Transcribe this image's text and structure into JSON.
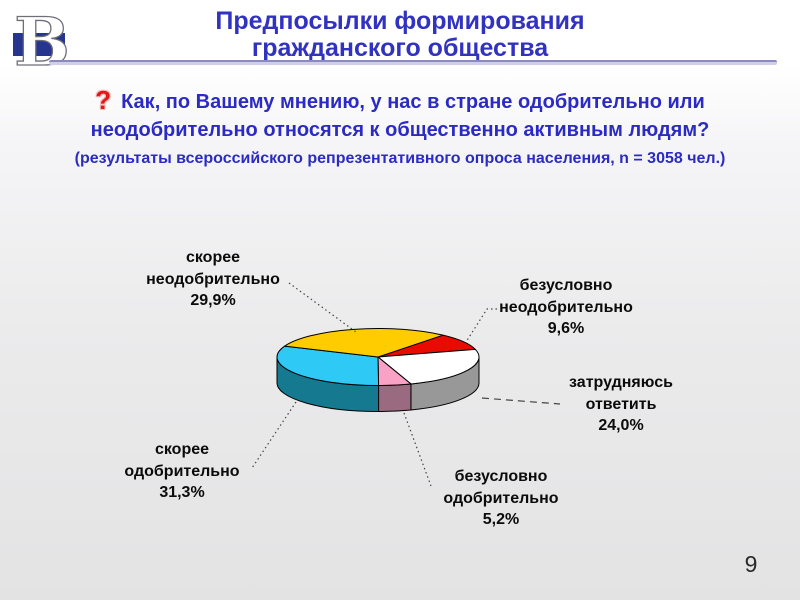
{
  "slide": {
    "page_number": "9",
    "logo_letter": "В",
    "title": {
      "line1": "Предпосылки формирования",
      "line2": "гражданского общества"
    },
    "question": {
      "icon": "?",
      "line1": "Как, по Вашему мнению, у нас в стране одобрительно или",
      "line2": "неодобрительно относятся к общественно активным людям?",
      "note": "(результаты всероссийского репрезентативного опроса населения, n = 3058 чел.)"
    }
  },
  "colors": {
    "title_blue": "#3232c0",
    "question_blue": "#2b2bc4",
    "icon_red": "#e01818",
    "rule_dark": "#8a8ac0",
    "rule_light": "#cfcfea",
    "logo_navy": "#26368e",
    "background_bottom": "#e3e3e4"
  },
  "chart_data": {
    "type": "pie",
    "is_3d": true,
    "direction": "clockwise",
    "start_angle_deg": 40,
    "title": "",
    "legend_position": "callouts",
    "slices": [
      {
        "label": "безусловно неодобрительно",
        "label_lines": [
          "безусловно",
          "неодобрительно"
        ],
        "value": 9.6,
        "value_text": "9,6%",
        "color": "#ea0b00",
        "side_color": "#8f0700"
      },
      {
        "label": "затрудняюсь ответить",
        "label_lines": [
          "затрудняюсь",
          "ответить"
        ],
        "value": 24.0,
        "value_text": "24,0%",
        "color": "#ffffff",
        "side_color": "#989898"
      },
      {
        "label": "безусловно одобрительно",
        "label_lines": [
          "безусловно",
          "одобрительно"
        ],
        "value": 5.2,
        "value_text": "5,2%",
        "color": "#f9a2c6",
        "side_color": "#9a6b80"
      },
      {
        "label": "скорее одобрительно",
        "label_lines": [
          "скорее",
          "одобрительно"
        ],
        "value": 31.3,
        "value_text": "31,3%",
        "color": "#2fc9f5",
        "side_color": "#15798f"
      },
      {
        "label": "скорее неодобрительно",
        "label_lines": [
          "скорее",
          "неодобрительно"
        ],
        "value": 29.9,
        "value_text": "29,9%",
        "color": "#ffcc00",
        "side_color": "#a38200"
      }
    ]
  }
}
